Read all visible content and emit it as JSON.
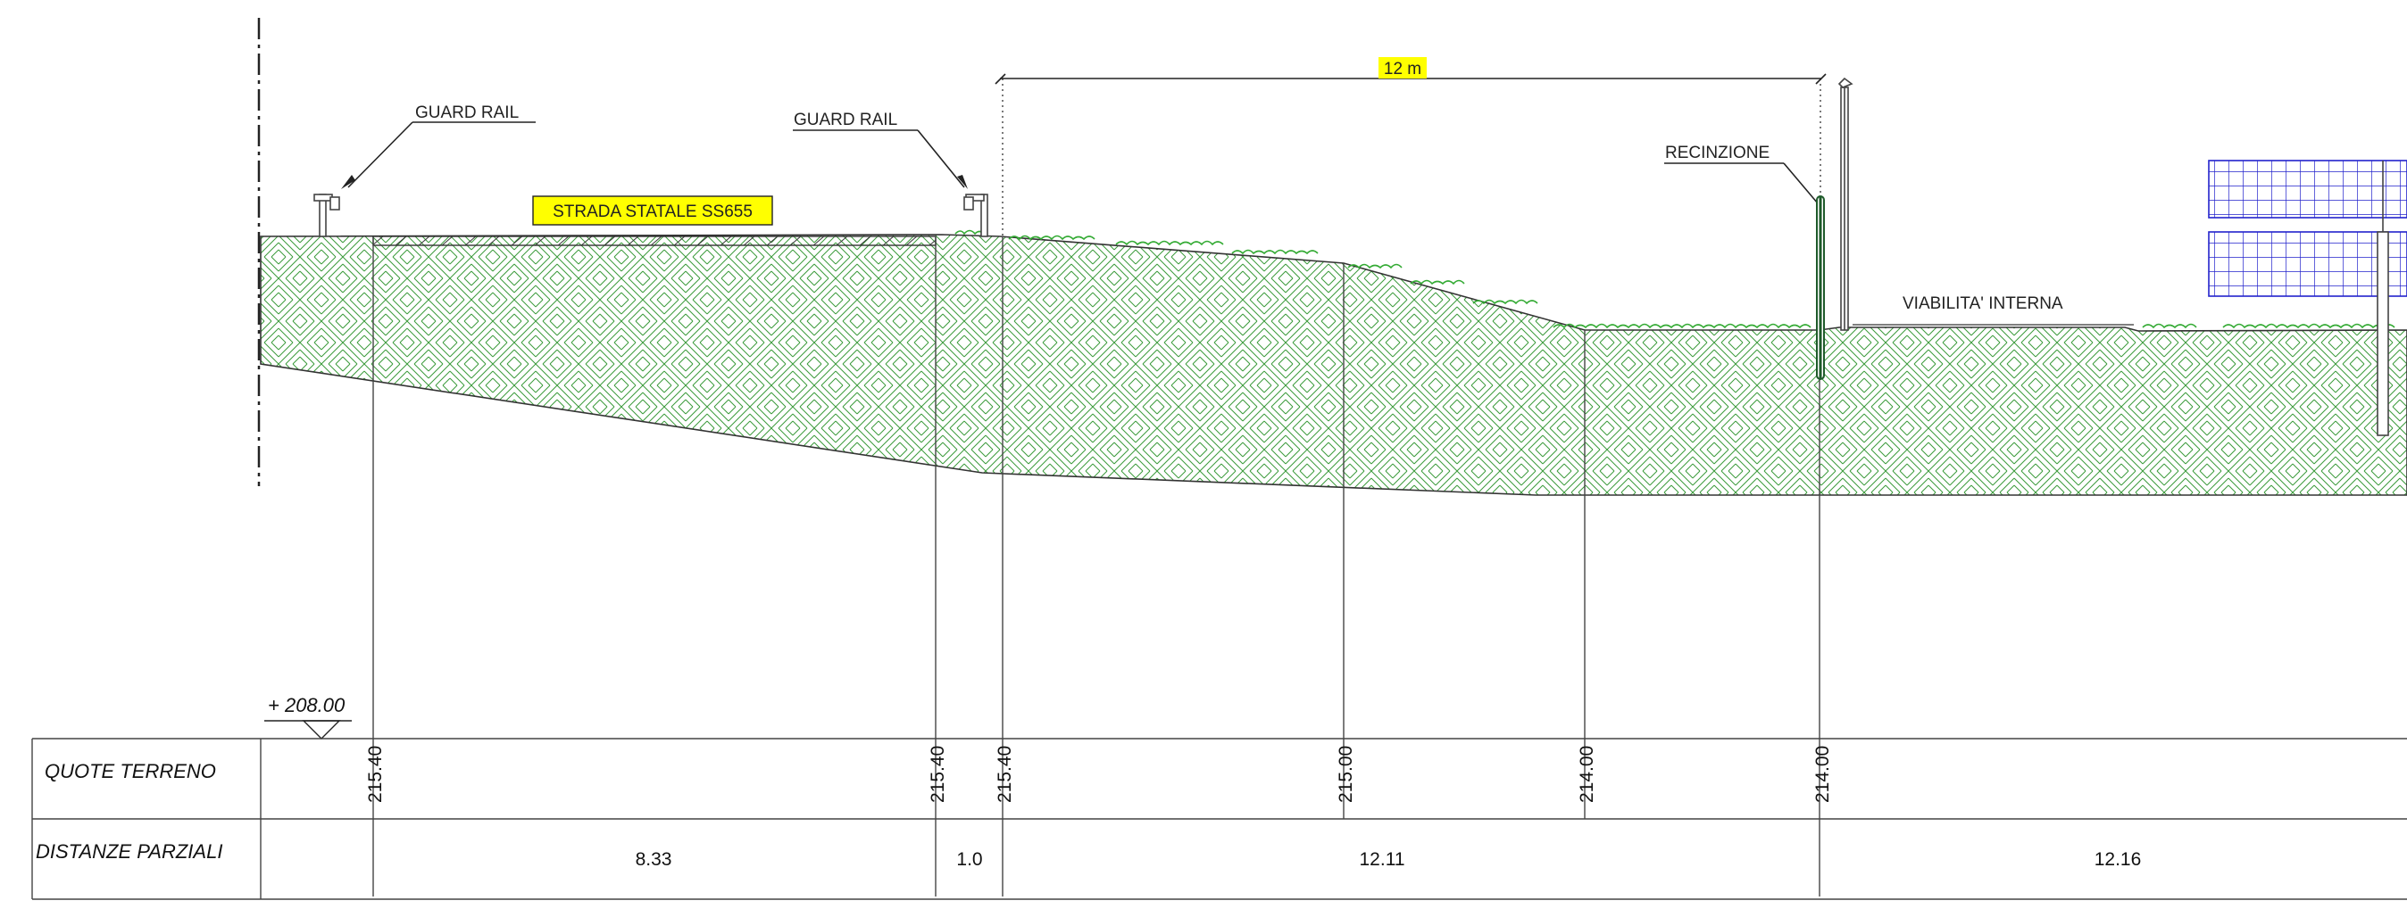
{
  "title_labels": {
    "strada": "STRADA STATALE SS655",
    "guard_rail_left": "GUARD RAIL",
    "guard_rail_right": "GUARD RAIL",
    "recinzione": "RECINZIONE",
    "viabilita": "VIABILITA' INTERNA",
    "dimension": "12 m",
    "datum": "+ 208.00"
  },
  "table": {
    "row1_header": "QUOTE TERRENO",
    "row2_header": "DISTANZE PARZIALI",
    "quote": [
      "215.40",
      "215.40",
      "215.40",
      "215.00",
      "214.00",
      "214.00"
    ],
    "distanze": [
      "8.33",
      "1.0",
      "12.11",
      "12.16"
    ]
  },
  "colors": {
    "highlight": "#ffff00",
    "hatch": "#3a9a3a",
    "grass": "#33aa33",
    "panel_blue": "#2222cc",
    "fence": "#1e5a2a",
    "line": "#333333"
  }
}
